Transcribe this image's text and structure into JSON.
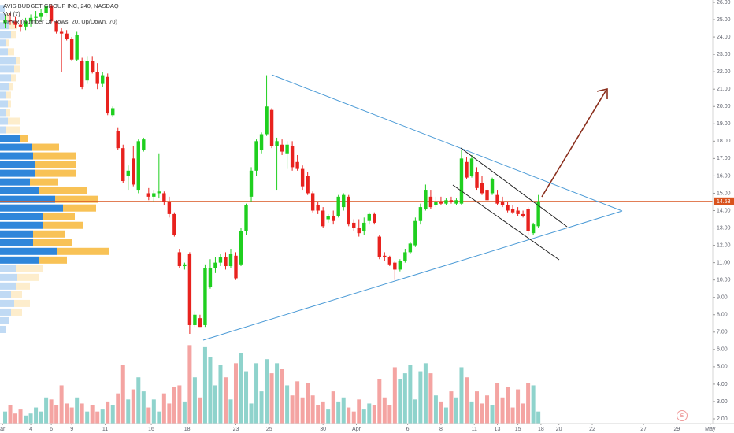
{
  "chart_data": {
    "type": "candlestick",
    "title": "AVIS BUDGET GROUP INC, 240, NASDAQ",
    "indicators": [
      "Vol (7)",
      "VPVR (Number Of Rows, 20, Up/Down, 70)"
    ],
    "x": [
      0,
      1,
      2,
      3,
      4,
      5,
      6,
      7,
      8,
      9,
      10,
      11,
      12,
      13,
      14,
      15,
      16,
      17,
      18,
      19,
      20,
      21,
      22,
      23,
      24,
      25,
      26,
      27,
      28,
      29,
      30,
      31,
      32,
      33,
      34,
      35,
      36,
      37,
      38,
      39,
      40,
      41,
      42,
      43,
      44,
      45,
      46,
      47,
      48,
      49,
      50,
      51,
      52,
      53,
      54,
      55,
      56,
      57,
      58,
      59,
      60,
      61,
      62,
      63,
      64,
      65,
      66,
      67,
      68,
      69,
      70,
      71,
      72,
      73,
      74,
      75,
      76,
      77,
      78,
      79,
      80,
      81,
      82,
      83,
      84,
      85,
      86,
      87,
      88,
      89,
      90,
      91,
      92,
      93,
      94,
      95,
      96,
      97,
      98,
      99,
      100,
      101,
      102,
      103,
      104
    ],
    "open": [
      24.8,
      25.0,
      24.9,
      24.7,
      24.6,
      24.9,
      25.1,
      25.2,
      25.4,
      25.8,
      24.9,
      24.3,
      24.2,
      23.9,
      22.7,
      22.6,
      21.5,
      22.6,
      22.0,
      21.3,
      21.7,
      19.5,
      18.6,
      17.6,
      16.0,
      17.0,
      15.2,
      17.5,
      15.0,
      14.8,
      15.0,
      15.0,
      14.5,
      13.8,
      11.6,
      10.8,
      11.5,
      7.4,
      7.8,
      7.4,
      9.6,
      10.7,
      11.0,
      11.3,
      10.8,
      11.4,
      10.9,
      12.8,
      14.8,
      16.3,
      17.5,
      18.4,
      19.8,
      17.7,
      17.8,
      17.3,
      17.7,
      16.8,
      16.4,
      16.0,
      15.0,
      14.3,
      14.0,
      13.5,
      13.7,
      13.7,
      14.2,
      14.8,
      13.3,
      13.0,
      12.8,
      13.4,
      13.8,
      12.5,
      11.4,
      11.3,
      11.0,
      10.6,
      11.1,
      11.6,
      12.0,
      13.4,
      14.1,
      14.8,
      14.3,
      14.5,
      14.4,
      14.6,
      14.4,
      14.4,
      16.8,
      16.0,
      16.2,
      15.6,
      15.2,
      15.0,
      14.9,
      14.5,
      14.3,
      14.1,
      14.0,
      13.8,
      14.1,
      12.7,
      13.1
    ],
    "high": [
      25.3,
      25.4,
      25.2,
      25.0,
      25.1,
      25.3,
      25.5,
      25.6,
      25.9,
      25.9,
      25.0,
      24.5,
      24.4,
      24.0,
      24.3,
      22.8,
      22.9,
      22.9,
      22.5,
      22.0,
      21.9,
      20.0,
      18.8,
      17.8,
      16.6,
      17.7,
      18.1,
      18.2,
      15.3,
      15.2,
      17.3,
      15.1,
      14.8,
      13.9,
      11.8,
      11.0,
      11.6,
      8.2,
      8.0,
      10.9,
      11.2,
      11.3,
      11.5,
      11.6,
      11.8,
      11.6,
      13.0,
      14.4,
      16.5,
      18.1,
      18.5,
      21.8,
      19.9,
      18.2,
      18.1,
      18.0,
      18.0,
      17.2,
      16.6,
      16.2,
      15.1,
      14.5,
      14.2,
      13.8,
      14.0,
      14.9,
      15.0,
      14.9,
      13.5,
      13.5,
      13.6,
      13.9,
      13.9,
      12.6,
      11.6,
      11.4,
      11.1,
      11.2,
      11.8,
      12.2,
      13.6,
      14.4,
      15.5,
      15.2,
      14.8,
      14.8,
      14.7,
      14.8,
      14.7,
      17.5,
      17.1,
      17.2,
      16.5,
      16.0,
      15.4,
      15.9,
      15.2,
      14.8,
      14.5,
      14.3,
      14.2,
      14.0,
      14.2,
      13.3,
      14.9
    ],
    "low": [
      24.5,
      24.7,
      24.5,
      24.3,
      24.4,
      24.6,
      24.8,
      24.9,
      25.2,
      24.8,
      24.2,
      22.0,
      23.8,
      22.6,
      22.6,
      21.0,
      21.3,
      21.9,
      21.0,
      21.1,
      19.5,
      19.4,
      17.5,
      15.6,
      15.2,
      15.4,
      15.0,
      17.4,
      14.6,
      14.5,
      14.7,
      14.3,
      13.6,
      12.5,
      10.7,
      10.6,
      6.9,
      7.3,
      7.3,
      7.3,
      9.5,
      10.4,
      10.8,
      10.6,
      10.7,
      10.0,
      10.8,
      12.6,
      14.5,
      16.0,
      17.3,
      18.3,
      17.6,
      15.2,
      17.2,
      16.4,
      16.3,
      16.3,
      15.2,
      14.9,
      13.9,
      13.8,
      13.0,
      13.3,
      13.2,
      13.6,
      14.0,
      13.1,
      12.8,
      12.5,
      12.6,
      13.2,
      13.2,
      11.2,
      11.1,
      10.8,
      10.0,
      10.5,
      11.0,
      11.5,
      11.9,
      13.2,
      14.0,
      14.1,
      14.2,
      14.3,
      14.3,
      14.4,
      14.3,
      14.3,
      15.8,
      15.9,
      15.2,
      14.9,
      14.5,
      14.9,
      14.3,
      14.2,
      13.9,
      13.8,
      13.7,
      13.6,
      12.6,
      12.6,
      13.0
    ],
    "close": [
      25.0,
      24.9,
      24.7,
      24.6,
      24.9,
      25.1,
      25.2,
      25.4,
      25.8,
      24.9,
      24.3,
      24.2,
      23.9,
      22.7,
      24.1,
      21.1,
      22.6,
      22.0,
      21.3,
      21.8,
      19.6,
      19.9,
      17.6,
      15.7,
      16.3,
      15.5,
      18.0,
      18.1,
      14.8,
      15.0,
      15.1,
      14.5,
      13.8,
      12.6,
      10.8,
      10.9,
      7.4,
      8.0,
      7.3,
      10.7,
      10.7,
      11.0,
      11.3,
      10.8,
      11.5,
      10.1,
      12.8,
      14.3,
      16.3,
      18.0,
      18.4,
      20.0,
      17.7,
      18.0,
      17.4,
      17.8,
      16.5,
      16.4,
      15.4,
      15.0,
      14.0,
      14.0,
      13.1,
      13.7,
      13.4,
      14.8,
      14.9,
      13.2,
      13.0,
      12.7,
      13.3,
      13.8,
      13.3,
      11.3,
      11.3,
      10.9,
      10.6,
      11.1,
      11.6,
      12.1,
      13.4,
      14.2,
      15.2,
      14.2,
      14.5,
      14.4,
      14.6,
      14.5,
      14.6,
      17.0,
      15.9,
      17.0,
      15.3,
      15.0,
      14.6,
      15.8,
      14.4,
      14.3,
      14.0,
      13.9,
      13.8,
      13.7,
      12.8,
      13.2,
      14.53
    ],
    "up_color": "#1fcf1f",
    "down_color": "#e8221e",
    "xlim": [
      -1,
      138
    ],
    "ylim": [
      2,
      26
    ],
    "yticks": [
      {
        "value": 2,
        "label": "2.00"
      },
      {
        "value": 3,
        "label": "3.00"
      },
      {
        "value": 4,
        "label": "4.00"
      },
      {
        "value": 5,
        "label": "5.00"
      },
      {
        "value": 6,
        "label": "6.00"
      },
      {
        "value": 7,
        "label": "7.00"
      },
      {
        "value": 8,
        "label": "8.00"
      },
      {
        "value": 9,
        "label": "9.00"
      },
      {
        "value": 10,
        "label": "10.00"
      },
      {
        "value": 11,
        "label": "11.00"
      },
      {
        "value": 12,
        "label": "12.00"
      },
      {
        "value": 13,
        "label": "13.00"
      },
      {
        "value": 14,
        "label": "14.00"
      },
      {
        "value": 15,
        "label": "15.00"
      },
      {
        "value": 16,
        "label": "16.00"
      },
      {
        "value": 17,
        "label": "17.00"
      },
      {
        "value": 18,
        "label": "18.00"
      },
      {
        "value": 19,
        "label": "19.00"
      },
      {
        "value": 20,
        "label": "20.00"
      },
      {
        "value": 21,
        "label": "21.00"
      },
      {
        "value": 22,
        "label": "22.00"
      },
      {
        "value": 23,
        "label": "23.00"
      },
      {
        "value": 24,
        "label": "24.00"
      },
      {
        "value": 25,
        "label": "25.00"
      },
      {
        "value": 26,
        "label": "26.00"
      }
    ],
    "xticks": [
      {
        "value": -0.5,
        "label": "ar"
      },
      {
        "value": 5,
        "label": "4"
      },
      {
        "value": 9,
        "label": "6"
      },
      {
        "value": 13,
        "label": "9"
      },
      {
        "value": 19.5,
        "label": "11"
      },
      {
        "value": 28.5,
        "label": "16"
      },
      {
        "value": 35.5,
        "label": "18"
      },
      {
        "value": 45,
        "label": "23"
      },
      {
        "value": 51.5,
        "label": "25"
      },
      {
        "value": 62,
        "label": "30"
      },
      {
        "value": 68.5,
        "label": "Apr"
      },
      {
        "value": 78.5,
        "label": "6"
      },
      {
        "value": 85,
        "label": "8"
      },
      {
        "value": 91.5,
        "label": "11"
      },
      {
        "value": 96,
        "label": "13"
      },
      {
        "value": 100,
        "label": "15"
      },
      {
        "value": 104.5,
        "label": "18"
      },
      {
        "value": 108,
        "label": "20"
      },
      {
        "value": 114.5,
        "label": "22"
      },
      {
        "value": 124.5,
        "label": "27"
      },
      {
        "value": 131,
        "label": "29"
      },
      {
        "value": 137.5,
        "label": "May"
      }
    ],
    "grid": false,
    "last_price": {
      "value": 14.53,
      "label": "14.53"
    },
    "last_price_color": "#d9531e",
    "volume": {
      "values": [
        0.6,
        0.9,
        0.5,
        0.7,
        0.4,
        0.5,
        0.8,
        0.6,
        1.3,
        1.2,
        0.9,
        1.9,
        1.0,
        0.8,
        1.3,
        1.0,
        0.6,
        0.9,
        0.6,
        0.7,
        1.1,
        0.9,
        1.5,
        2.9,
        1.2,
        1.7,
        2.3,
        1.6,
        0.8,
        1.2,
        0.6,
        1.5,
        1.0,
        1.8,
        1.9,
        1.1,
        3.9,
        2.3,
        1.3,
        3.8,
        3.3,
        1.9,
        2.9,
        2.3,
        1.2,
        3.0,
        3.5,
        2.6,
        1.0,
        3.0,
        1.6,
        3.2,
        2.5,
        3.0,
        2.7,
        1.9,
        1.4,
        2.1,
        1.3,
        2.0,
        1.4,
        0.9,
        1.1,
        0.7,
        1.6,
        1.1,
        1.3,
        0.8,
        0.6,
        1.2,
        0.7,
        1.0,
        0.9,
        2.2,
        1.3,
        0.9,
        2.8,
        2.2,
        2.5,
        2.9,
        1.2,
        2.6,
        3.0,
        2.5,
        1.4,
        1.1,
        0.8,
        1.6,
        1.3,
        2.8,
        2.3,
        1.1,
        1.6,
        1.0,
        1.4,
        0.9,
        2.0,
        1.3,
        1.8,
        0.8,
        1.7,
        1.0,
        2.0,
        1.9,
        0.6
      ],
      "ylim": [
        0,
        4.5
      ],
      "up_color": "#8fd3cc",
      "down_color": "#f4a4a2"
    },
    "vpvr": {
      "bins": [
        6.9,
        7.4,
        7.9,
        8.4,
        8.9,
        9.4,
        9.9,
        10.4,
        10.9,
        11.4,
        11.9,
        12.4,
        12.9,
        13.4,
        13.9,
        14.4,
        14.9,
        15.4,
        15.9,
        16.4,
        16.9,
        17.4,
        17.9,
        18.4,
        18.9,
        19.4,
        19.9,
        20.4,
        20.9,
        21.4,
        21.9,
        22.4,
        22.9,
        23.4,
        23.9,
        24.4,
        24.9,
        25.4,
        25.9
      ],
      "up": [
        8,
        12,
        14,
        18,
        14,
        20,
        22,
        20,
        50,
        72,
        42,
        42,
        55,
        55,
        80,
        70,
        50,
        38,
        45,
        45,
        42,
        40,
        25,
        8,
        10,
        8,
        10,
        8,
        12,
        14,
        18,
        20,
        10,
        8,
        14,
        12,
        8,
        6
      ],
      "down": [
        0,
        0,
        14,
        20,
        14,
        18,
        28,
        35,
        35,
        66,
        50,
        40,
        50,
        40,
        42,
        55,
        60,
        36,
        52,
        52,
        55,
        35,
        10,
        18,
        15,
        5,
        4,
        6,
        4,
        6,
        8,
        6,
        8,
        4,
        6,
        10,
        4,
        0
      ],
      "xlim": [
        0,
        140
      ],
      "value_area": [
        10.9,
        17.9
      ],
      "up_color": "#2f86da",
      "down_color": "#f8c256"
    },
    "earnings_marker": "E"
  }
}
